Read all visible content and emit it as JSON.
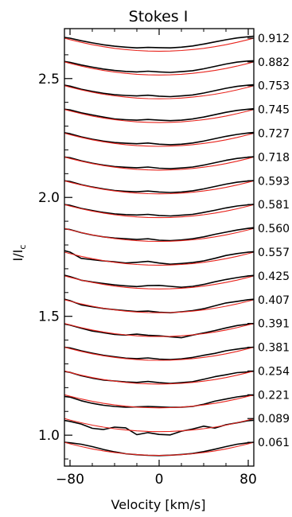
{
  "chart_data": {
    "type": "line",
    "title": "Stokes I",
    "xlabel": "Velocity [km/s]",
    "ylabel": "I/I",
    "ylabel_sub": "c",
    "xlim": [
      -85,
      85
    ],
    "ylim": [
      0.87,
      2.71
    ],
    "xticks": [
      -80,
      0,
      80
    ],
    "xtick_labels": [
      "−80",
      "0",
      "80"
    ],
    "yticks": [
      1.0,
      1.5,
      2.0,
      2.5
    ],
    "ytick_labels": [
      "1.0",
      "1.5",
      "2.0",
      "2.5"
    ],
    "phases": [
      "0.061",
      "0.089",
      "0.221",
      "0.254",
      "0.381",
      "0.391",
      "0.407",
      "0.425",
      "0.557",
      "0.560",
      "0.581",
      "0.593",
      "0.718",
      "0.727",
      "0.745",
      "0.753",
      "0.882",
      "0.912"
    ],
    "offsets": [
      0.97,
      1.07,
      1.17,
      1.27,
      1.37,
      1.47,
      1.57,
      1.67,
      1.77,
      1.87,
      1.97,
      2.07,
      2.17,
      2.27,
      2.37,
      2.47,
      2.57,
      2.67
    ],
    "x": [
      -85,
      -80,
      -70,
      -60,
      -50,
      -40,
      -30,
      -20,
      -10,
      0,
      10,
      20,
      30,
      40,
      50,
      60,
      70,
      80,
      85
    ],
    "series": [
      {
        "values": [
          0.97,
          0.968,
          0.962,
          0.952,
          0.94,
          0.93,
          0.922,
          0.918,
          0.915,
          0.914,
          0.916,
          0.919,
          0.923,
          0.931,
          0.941,
          0.952,
          0.962,
          0.968,
          0.97
        ]
      },
      {
        "values": [
          1.062,
          1.058,
          1.047,
          1.029,
          1.024,
          1.034,
          1.031,
          1.002,
          1.011,
          1.003,
          1.001,
          1.017,
          1.026,
          1.038,
          1.03,
          1.044,
          1.052,
          1.061,
          1.063
        ]
      },
      {
        "values": [
          1.163,
          1.16,
          1.145,
          1.134,
          1.126,
          1.121,
          1.118,
          1.119,
          1.121,
          1.119,
          1.117,
          1.118,
          1.121,
          1.13,
          1.143,
          1.152,
          1.161,
          1.167,
          1.168
        ]
      },
      {
        "values": [
          1.268,
          1.264,
          1.25,
          1.24,
          1.232,
          1.228,
          1.224,
          1.222,
          1.226,
          1.221,
          1.218,
          1.221,
          1.225,
          1.235,
          1.246,
          1.254,
          1.263,
          1.266,
          1.269
        ]
      },
      {
        "values": [
          1.37,
          1.367,
          1.355,
          1.345,
          1.336,
          1.33,
          1.324,
          1.322,
          1.325,
          1.32,
          1.318,
          1.321,
          1.327,
          1.336,
          1.344,
          1.355,
          1.362,
          1.368,
          1.37
        ]
      },
      {
        "values": [
          1.468,
          1.463,
          1.45,
          1.438,
          1.431,
          1.424,
          1.421,
          1.425,
          1.42,
          1.418,
          1.414,
          1.41,
          1.421,
          1.43,
          1.44,
          1.451,
          1.461,
          1.467,
          1.469
        ]
      },
      {
        "values": [
          1.572,
          1.566,
          1.548,
          1.54,
          1.533,
          1.528,
          1.524,
          1.52,
          1.522,
          1.517,
          1.515,
          1.519,
          1.524,
          1.532,
          1.544,
          1.556,
          1.563,
          1.57,
          1.572
        ]
      },
      {
        "values": [
          1.673,
          1.667,
          1.652,
          1.644,
          1.638,
          1.632,
          1.628,
          1.625,
          1.629,
          1.63,
          1.626,
          1.622,
          1.626,
          1.634,
          1.645,
          1.655,
          1.663,
          1.67,
          1.672
        ]
      },
      {
        "values": [
          1.776,
          1.77,
          1.744,
          1.738,
          1.733,
          1.729,
          1.724,
          1.727,
          1.731,
          1.724,
          1.719,
          1.722,
          1.726,
          1.733,
          1.744,
          1.756,
          1.764,
          1.77,
          1.772
        ]
      },
      {
        "values": [
          1.868,
          1.865,
          1.852,
          1.842,
          1.834,
          1.829,
          1.826,
          1.823,
          1.826,
          1.82,
          1.818,
          1.821,
          1.826,
          1.834,
          1.845,
          1.854,
          1.863,
          1.87,
          1.873
        ]
      },
      {
        "values": [
          1.97,
          1.967,
          1.954,
          1.945,
          1.937,
          1.931,
          1.928,
          1.926,
          1.929,
          1.924,
          1.922,
          1.925,
          1.929,
          1.937,
          1.946,
          1.956,
          1.964,
          1.969,
          1.971
        ]
      },
      {
        "values": [
          2.07,
          2.067,
          2.054,
          2.044,
          2.036,
          2.029,
          2.026,
          2.024,
          2.027,
          2.023,
          2.021,
          2.023,
          2.028,
          2.036,
          2.046,
          2.056,
          2.064,
          2.069,
          2.071
        ]
      },
      {
        "values": [
          2.17,
          2.167,
          2.154,
          2.144,
          2.136,
          2.13,
          2.127,
          2.125,
          2.128,
          2.123,
          2.121,
          2.124,
          2.128,
          2.136,
          2.146,
          2.156,
          2.164,
          2.169,
          2.171
        ]
      },
      {
        "values": [
          2.272,
          2.268,
          2.255,
          2.245,
          2.237,
          2.231,
          2.228,
          2.226,
          2.229,
          2.224,
          2.222,
          2.224,
          2.229,
          2.237,
          2.247,
          2.257,
          2.265,
          2.271,
          2.273
        ]
      },
      {
        "values": [
          2.371,
          2.368,
          2.356,
          2.347,
          2.338,
          2.33,
          2.327,
          2.325,
          2.328,
          2.325,
          2.323,
          2.325,
          2.33,
          2.338,
          2.348,
          2.358,
          2.366,
          2.371,
          2.373
        ]
      },
      {
        "values": [
          2.472,
          2.468,
          2.455,
          2.446,
          2.438,
          2.432,
          2.429,
          2.427,
          2.43,
          2.426,
          2.424,
          2.427,
          2.431,
          2.439,
          2.449,
          2.459,
          2.467,
          2.472,
          2.474
        ]
      },
      {
        "values": [
          2.572,
          2.568,
          2.557,
          2.548,
          2.54,
          2.534,
          2.53,
          2.528,
          2.531,
          2.528,
          2.526,
          2.529,
          2.533,
          2.541,
          2.551,
          2.561,
          2.569,
          2.574,
          2.575
        ]
      },
      {
        "values": [
          2.673,
          2.67,
          2.659,
          2.65,
          2.642,
          2.636,
          2.632,
          2.629,
          2.631,
          2.63,
          2.629,
          2.632,
          2.637,
          2.645,
          2.654,
          2.663,
          2.671,
          2.676,
          2.678
        ]
      }
    ],
    "model_color": "#e8231c",
    "obs_color": "#000000",
    "grid": false
  }
}
